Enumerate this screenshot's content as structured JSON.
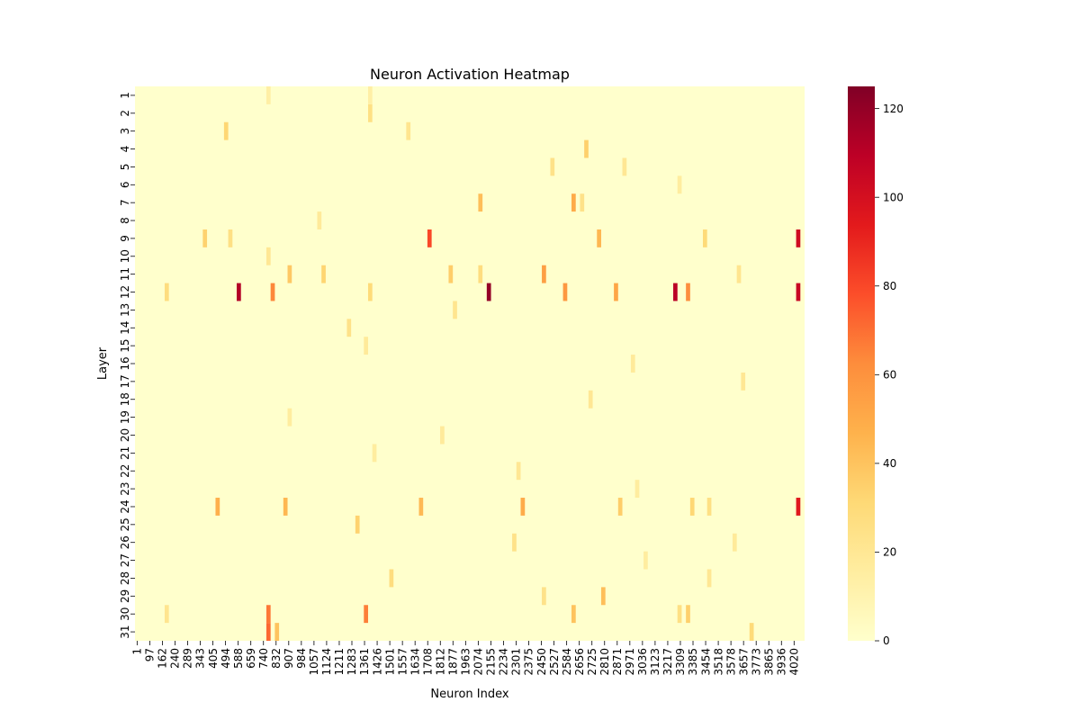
{
  "chart_data": {
    "type": "heatmap",
    "title": "Neuron Activation Heatmap",
    "xlabel": "Neuron Index",
    "ylabel": "Layer",
    "x_tick_labels": [
      "1",
      "97",
      "162",
      "240",
      "289",
      "343",
      "405",
      "494",
      "588",
      "659",
      "740",
      "832",
      "907",
      "984",
      "1057",
      "1124",
      "1211",
      "1283",
      "1361",
      "1426",
      "1501",
      "1557",
      "1634",
      "1708",
      "1812",
      "1877",
      "1963",
      "2074",
      "2155",
      "2234",
      "2301",
      "2375",
      "2450",
      "2527",
      "2584",
      "2656",
      "2725",
      "2810",
      "2871",
      "2971",
      "3036",
      "3123",
      "3217",
      "3309",
      "3385",
      "3454",
      "3518",
      "3578",
      "3657",
      "3773",
      "3865",
      "3936",
      "4020"
    ],
    "y_tick_labels": [
      "1",
      "2",
      "3",
      "4",
      "5",
      "6",
      "7",
      "8",
      "9",
      "10",
      "11",
      "12",
      "13",
      "14",
      "15",
      "16",
      "17",
      "18",
      "19",
      "20",
      "21",
      "22",
      "23",
      "24",
      "25",
      "26",
      "27",
      "28",
      "29",
      "30",
      "31"
    ],
    "n_columns": 158,
    "baseline_value": 0,
    "hotspots": [
      {
        "layer": 12,
        "col": 83,
        "value": 120
      },
      {
        "layer": 12,
        "col": 24,
        "value": 112
      },
      {
        "layer": 12,
        "col": 127,
        "value": 110
      },
      {
        "layer": 12,
        "col": 156,
        "value": 105
      },
      {
        "layer": 9,
        "col": 156,
        "value": 102
      },
      {
        "layer": 24,
        "col": 156,
        "value": 95
      },
      {
        "layer": 9,
        "col": 69,
        "value": 80
      },
      {
        "layer": 31,
        "col": 31,
        "value": 72
      },
      {
        "layer": 30,
        "col": 31,
        "value": 68
      },
      {
        "layer": 30,
        "col": 54,
        "value": 66
      },
      {
        "layer": 12,
        "col": 32,
        "value": 64
      },
      {
        "layer": 12,
        "col": 130,
        "value": 62
      },
      {
        "layer": 12,
        "col": 101,
        "value": 58
      },
      {
        "layer": 11,
        "col": 96,
        "value": 55
      },
      {
        "layer": 12,
        "col": 113,
        "value": 52
      },
      {
        "layer": 24,
        "col": 91,
        "value": 50
      },
      {
        "layer": 7,
        "col": 103,
        "value": 50
      },
      {
        "layer": 24,
        "col": 19,
        "value": 48
      },
      {
        "layer": 24,
        "col": 35,
        "value": 45
      },
      {
        "layer": 9,
        "col": 109,
        "value": 45
      },
      {
        "layer": 24,
        "col": 67,
        "value": 44
      },
      {
        "layer": 29,
        "col": 110,
        "value": 42
      },
      {
        "layer": 7,
        "col": 81,
        "value": 42
      },
      {
        "layer": 31,
        "col": 33,
        "value": 40
      },
      {
        "layer": 30,
        "col": 103,
        "value": 40
      },
      {
        "layer": 11,
        "col": 36,
        "value": 38
      },
      {
        "layer": 24,
        "col": 114,
        "value": 36
      },
      {
        "layer": 11,
        "col": 74,
        "value": 36
      },
      {
        "layer": 30,
        "col": 130,
        "value": 35
      },
      {
        "layer": 4,
        "col": 106,
        "value": 35
      },
      {
        "layer": 9,
        "col": 16,
        "value": 34
      },
      {
        "layer": 25,
        "col": 52,
        "value": 34
      },
      {
        "layer": 11,
        "col": 44,
        "value": 33
      },
      {
        "layer": 24,
        "col": 131,
        "value": 32
      },
      {
        "layer": 3,
        "col": 21,
        "value": 32
      },
      {
        "layer": 12,
        "col": 55,
        "value": 30
      },
      {
        "layer": 9,
        "col": 134,
        "value": 30
      },
      {
        "layer": 31,
        "col": 145,
        "value": 30
      },
      {
        "layer": 12,
        "col": 7,
        "value": 28
      },
      {
        "layer": 28,
        "col": 60,
        "value": 28
      },
      {
        "layer": 11,
        "col": 81,
        "value": 28
      },
      {
        "layer": 2,
        "col": 55,
        "value": 26
      },
      {
        "layer": 30,
        "col": 128,
        "value": 26
      },
      {
        "layer": 9,
        "col": 22,
        "value": 26
      },
      {
        "layer": 24,
        "col": 135,
        "value": 26
      },
      {
        "layer": 14,
        "col": 50,
        "value": 24
      },
      {
        "layer": 26,
        "col": 89,
        "value": 24
      },
      {
        "layer": 5,
        "col": 98,
        "value": 24
      },
      {
        "layer": 29,
        "col": 96,
        "value": 24
      },
      {
        "layer": 7,
        "col": 105,
        "value": 24
      },
      {
        "layer": 11,
        "col": 142,
        "value": 22
      },
      {
        "layer": 3,
        "col": 64,
        "value": 22
      },
      {
        "layer": 30,
        "col": 7,
        "value": 22
      },
      {
        "layer": 13,
        "col": 75,
        "value": 22
      },
      {
        "layer": 17,
        "col": 143,
        "value": 20
      },
      {
        "layer": 22,
        "col": 90,
        "value": 20
      },
      {
        "layer": 5,
        "col": 115,
        "value": 20
      },
      {
        "layer": 28,
        "col": 135,
        "value": 20
      },
      {
        "layer": 18,
        "col": 107,
        "value": 20
      },
      {
        "layer": 10,
        "col": 31,
        "value": 20
      },
      {
        "layer": 15,
        "col": 54,
        "value": 18
      },
      {
        "layer": 16,
        "col": 117,
        "value": 18
      },
      {
        "layer": 26,
        "col": 141,
        "value": 18
      },
      {
        "layer": 8,
        "col": 43,
        "value": 18
      },
      {
        "layer": 20,
        "col": 72,
        "value": 18
      },
      {
        "layer": 23,
        "col": 118,
        "value": 16
      },
      {
        "layer": 19,
        "col": 36,
        "value": 16
      },
      {
        "layer": 27,
        "col": 120,
        "value": 16
      },
      {
        "layer": 21,
        "col": 56,
        "value": 16
      },
      {
        "layer": 6,
        "col": 128,
        "value": 16
      },
      {
        "layer": 1,
        "col": 31,
        "value": 14
      },
      {
        "layer": 1,
        "col": 55,
        "value": 14
      }
    ],
    "colorbar": {
      "ticks": [
        0,
        20,
        40,
        60,
        80,
        100,
        120
      ],
      "min": 0,
      "max": 125,
      "colormap": "YlOrRd"
    }
  }
}
